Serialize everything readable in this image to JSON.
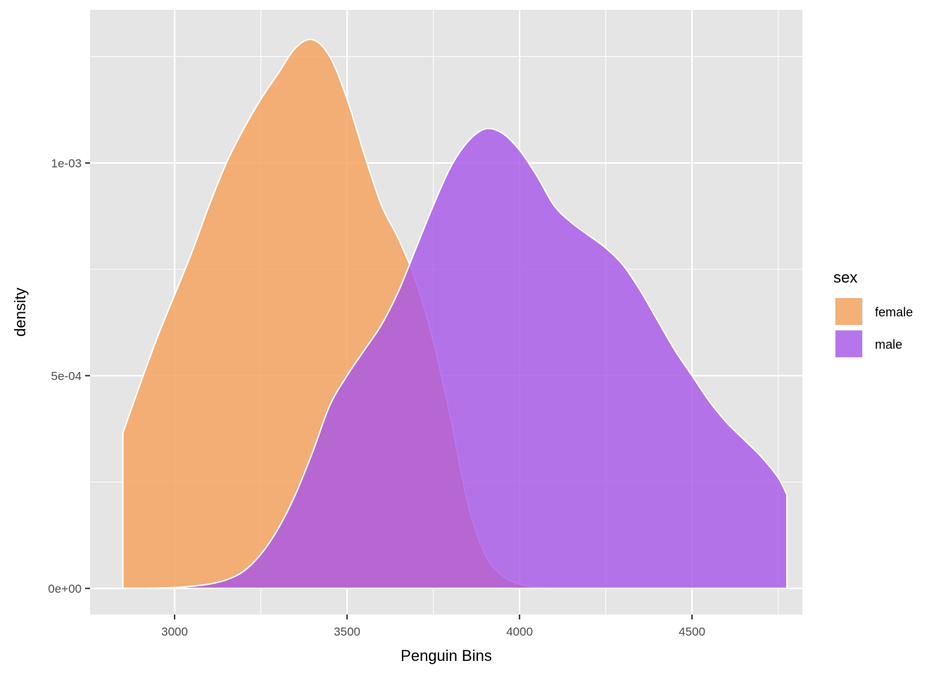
{
  "chart_data": {
    "type": "area",
    "subtype": "density",
    "xlabel": "Penguin Bins",
    "ylabel": "density",
    "xlim": [
      2755,
      4820
    ],
    "ylim": [
      -6.15e-05,
      0.00136
    ],
    "x_ticks": [
      3000,
      3500,
      4000,
      4500
    ],
    "x_tick_labels": [
      "3000",
      "3500",
      "4000",
      "4500"
    ],
    "y_ticks": [
      0,
      0.0005,
      0.001
    ],
    "y_tick_labels": [
      "0e+00",
      "5e-04",
      "1e-03"
    ],
    "grid": true,
    "legend": {
      "title": "sex",
      "position": "right"
    },
    "colors": {
      "panel_bg": "#e5e5e5",
      "grid": "#ffffff",
      "outline": "#ffffff",
      "female": "#f4a460",
      "male": "#a855e8"
    },
    "series": [
      {
        "name": "female",
        "fill": "#f4a460",
        "opacity": 0.85,
        "x": [
          2850,
          2900,
          2950,
          3000,
          3050,
          3100,
          3150,
          3200,
          3250,
          3300,
          3350,
          3400,
          3450,
          3500,
          3550,
          3600,
          3650,
          3700,
          3750,
          3800,
          3850,
          3900,
          3950,
          4000,
          4050,
          4100,
          4150,
          4200,
          4250,
          4300,
          4350,
          4400,
          4450,
          4500,
          4550,
          4600,
          4650,
          4700,
          4750,
          4775
        ],
        "y": [
          0.000365,
          0.00048,
          0.00059,
          0.00069,
          0.00079,
          0.0009,
          0.001,
          0.00108,
          0.00115,
          0.00121,
          0.00127,
          0.00129,
          0.00125,
          0.00115,
          0.00102,
          0.0009,
          0.00082,
          0.00072,
          0.00058,
          0.0004,
          0.0002,
          8e-05,
          3e-05,
          1e-05,
          3e-06,
          1e-06,
          0,
          0,
          0,
          0,
          0,
          0,
          0,
          0,
          0,
          0,
          0,
          0,
          0,
          0
        ]
      },
      {
        "name": "male",
        "fill": "#a855e8",
        "opacity": 0.8,
        "x": [
          2850,
          2900,
          2950,
          3000,
          3050,
          3100,
          3150,
          3200,
          3250,
          3300,
          3350,
          3400,
          3450,
          3500,
          3550,
          3600,
          3650,
          3700,
          3750,
          3800,
          3850,
          3900,
          3950,
          4000,
          4050,
          4100,
          4150,
          4200,
          4250,
          4300,
          4350,
          4400,
          4450,
          4500,
          4550,
          4600,
          4650,
          4700,
          4750,
          4775
        ],
        "y": [
          0,
          0,
          1e-06,
          2e-06,
          5e-06,
          1e-05,
          2e-05,
          4e-05,
          8e-05,
          0.00014,
          0.00022,
          0.00032,
          0.00043,
          0.0005,
          0.00056,
          0.00062,
          0.0007,
          0.0008,
          0.0009,
          0.00099,
          0.00105,
          0.00108,
          0.00107,
          0.00103,
          0.00097,
          0.0009,
          0.00086,
          0.00083,
          0.0008,
          0.00076,
          0.0007,
          0.00063,
          0.00056,
          0.0005,
          0.00044,
          0.00039,
          0.00035,
          0.00031,
          0.00026,
          0.00022
        ]
      }
    ]
  }
}
